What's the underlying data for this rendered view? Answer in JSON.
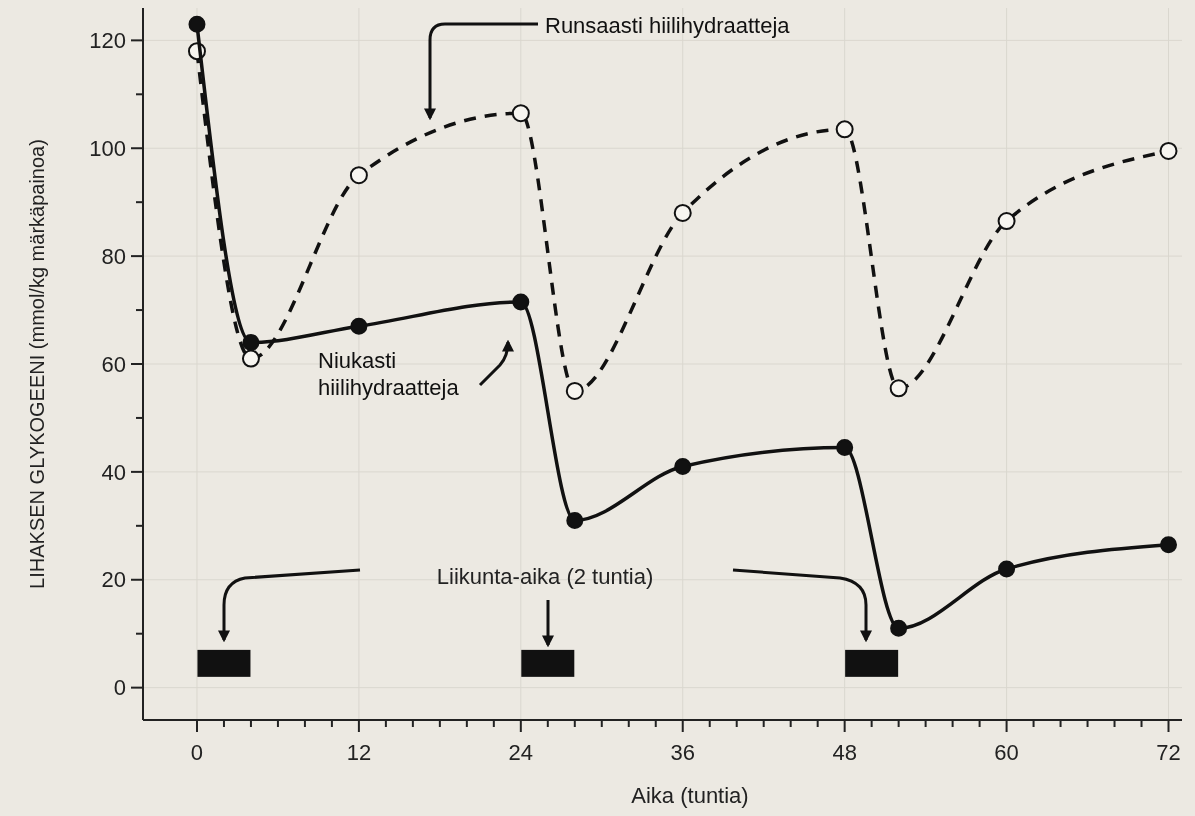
{
  "chart_data": {
    "type": "line",
    "xlabel": "Aika (tuntia)",
    "ylabel": "LIHAKSEN GLYKOGEENI (mmol/kg märkäpainoa)",
    "x": [
      0,
      4,
      12,
      24,
      28,
      36,
      48,
      52,
      60,
      72
    ],
    "series": [
      {
        "name": "Runsaasti hiilihydraatteja",
        "color": "#111111",
        "line_style": "dashed",
        "values": [
          118,
          61,
          95,
          106.5,
          55,
          88,
          103.5,
          55.5,
          86.5,
          99.5
        ]
      },
      {
        "name": "Niukasti hiilihydraatteja",
        "color": "#111111",
        "line_style": "solid",
        "values": [
          123,
          64,
          67,
          71.5,
          31,
          41,
          44.5,
          11,
          22,
          26.5
        ]
      },
      {
        "type": "bar",
        "color": "#111111",
        "x": [
          2,
          26,
          50
        ],
        "base": [
          2,
          2,
          2
        ],
        "values": [
          5,
          5,
          5
        ]
      }
    ],
    "marker": "circle",
    "xlim": [
      -4,
      73
    ],
    "ylim": [
      -6,
      126
    ],
    "xticks": [
      0,
      {
        "value": 2,
        "label": null
      },
      {
        "value": 4,
        "label": null
      },
      {
        "value": 6,
        "label": null
      },
      {
        "value": 8,
        "label": null
      },
      {
        "value": 10,
        "label": null
      },
      12,
      {
        "value": 14,
        "label": null
      },
      {
        "value": 16,
        "label": null
      },
      {
        "value": 18,
        "label": null
      },
      {
        "value": 20,
        "label": null
      },
      {
        "value": 22,
        "label": null
      },
      24,
      {
        "value": 26,
        "label": null
      },
      {
        "value": 28,
        "label": null
      },
      {
        "value": 30,
        "label": null
      },
      {
        "value": 32,
        "label": null
      },
      {
        "value": 34,
        "label": null
      },
      36,
      {
        "value": 38,
        "label": null
      },
      {
        "value": 40,
        "label": null
      },
      {
        "value": 42,
        "label": null
      },
      {
        "value": 44,
        "label": null
      },
      {
        "value": 46,
        "label": null
      },
      48,
      {
        "value": 50,
        "label": null
      },
      {
        "value": 52,
        "label": null
      },
      {
        "value": 54,
        "label": null
      },
      {
        "value": 56,
        "label": null
      },
      {
        "value": 58,
        "label": null
      },
      60,
      {
        "value": 62,
        "label": null
      },
      {
        "value": 64,
        "label": null
      },
      {
        "value": 66,
        "label": null
      },
      {
        "value": 68,
        "label": null
      },
      {
        "value": 70,
        "label": null
      },
      72
    ],
    "yticks": [
      0,
      {
        "value": 10,
        "label": null
      },
      20,
      {
        "value": 30,
        "label": null
      },
      40,
      {
        "value": 50,
        "label": null
      },
      60,
      {
        "value": 70,
        "label": null
      },
      80,
      {
        "value": 90,
        "label": null
      },
      100,
      {
        "value": 110,
        "label": null
      },
      120
    ],
    "grid": true,
    "annotations": [
      "Liikunta-aika (2 tuntia)"
    ]
  }
}
